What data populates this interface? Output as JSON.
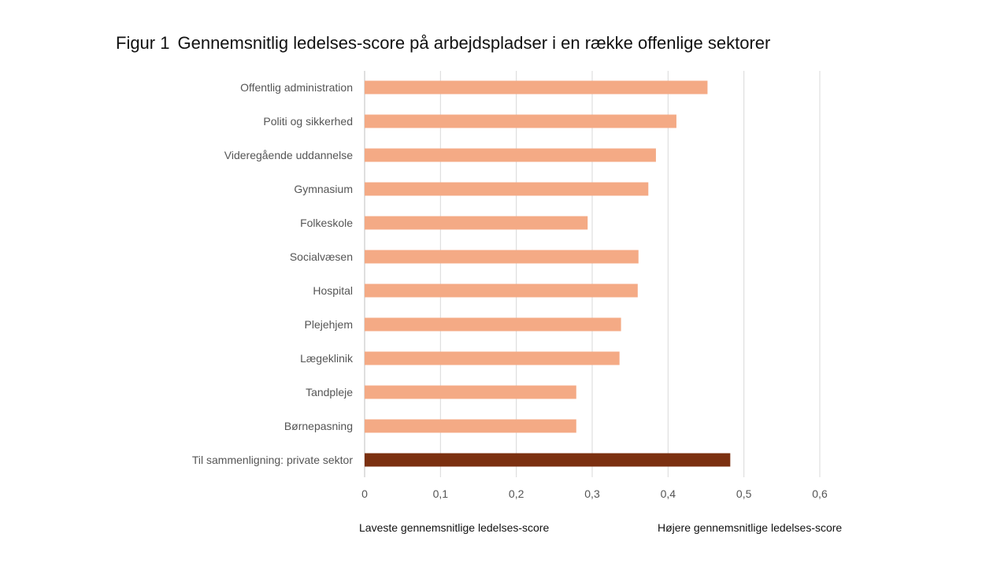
{
  "title": {
    "number": "Figur 1",
    "text": "Gennemsnitlig ledelses-score på arbejdspladser i en række offenlige sektorer"
  },
  "footer": {
    "left_label": "Laveste gennemsnitlige ledelses-score",
    "right_label": "Højere gennemsnitlige ledelses-score"
  },
  "chart_data": {
    "type": "bar",
    "orientation": "horizontal",
    "title": "Gennemsnitlig ledelses-score på arbejdspladser i en række offenlige sektorer",
    "categories": [
      "Offentlig administration",
      "Politi og sikkerhed",
      "Videregående uddannelse",
      "Gymnasium",
      "Folkeskole",
      "Socialvæsen",
      "Hospital",
      "Plejehjem",
      "Lægeklinik",
      "Tandpleje",
      "Børnepasning",
      "Til sammenligning: private sektor"
    ],
    "values": [
      0.452,
      0.411,
      0.384,
      0.374,
      0.294,
      0.361,
      0.36,
      0.338,
      0.336,
      0.279,
      0.279,
      0.482
    ],
    "xlim": [
      0,
      0.6
    ],
    "xticks": [
      0,
      0.1,
      0.2,
      0.3,
      0.4,
      0.5,
      0.6
    ],
    "xtick_labels": [
      "0",
      "0,1",
      "0,2",
      "0,3",
      "0,4",
      "0,5",
      "0,6"
    ],
    "grid": true,
    "colors": {
      "default": "#f4aa85",
      "highlight": "#7b3010",
      "grid": "#d9d9d9",
      "label": "#555555"
    },
    "highlight_index": 11
  }
}
